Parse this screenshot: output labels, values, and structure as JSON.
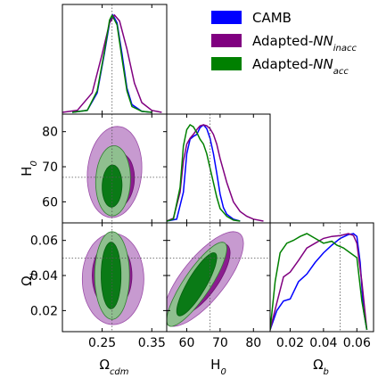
{
  "figure": {
    "type": "triangle-plot",
    "parameters": [
      {
        "key": "omega_cdm",
        "label": "Ω",
        "sub": "cdm",
        "range": [
          0.17,
          0.38
        ],
        "ticks": [
          0.25,
          0.35
        ],
        "tick_labels": [
          "0.25",
          "0.35"
        ],
        "marker": 0.27
      },
      {
        "key": "H0",
        "label": "H",
        "sub": "0",
        "range": [
          54,
          85
        ],
        "ticks": [
          60,
          70,
          80
        ],
        "tick_labels": [
          "60",
          "70",
          "80"
        ],
        "marker": 67
      },
      {
        "key": "omega_b",
        "label": "Ω",
        "sub": "b",
        "range": [
          0.008,
          0.07
        ],
        "ticks": [
          0.02,
          0.04,
          0.06
        ],
        "tick_labels": [
          "0.02",
          "0.04",
          "0.06"
        ],
        "marker": 0.05
      }
    ]
  },
  "legend": [
    {
      "name": "CAMB",
      "sub": "",
      "color": "#0000ff"
    },
    {
      "name": "Adapted-",
      "italic": "NN",
      "sub": "inacc",
      "color": "#800080"
    },
    {
      "name": "Adapted-",
      "italic": "NN",
      "sub": "acc",
      "color": "#008000"
    }
  ],
  "chart_data": {
    "type": "triangle",
    "series": [
      {
        "name": "CAMB",
        "color": "#0000ff",
        "pdf_omega_cdm": [
          [
            0.19,
            0
          ],
          [
            0.22,
            0.02
          ],
          [
            0.24,
            0.2
          ],
          [
            0.255,
            0.62
          ],
          [
            0.265,
            0.92
          ],
          [
            0.272,
            1.0
          ],
          [
            0.28,
            0.92
          ],
          [
            0.29,
            0.6
          ],
          [
            0.3,
            0.25
          ],
          [
            0.31,
            0.08
          ],
          [
            0.33,
            0.01
          ],
          [
            0.35,
            0
          ]
        ],
        "pdf_H0": [
          [
            54,
            0
          ],
          [
            57,
            0.02
          ],
          [
            59,
            0.3
          ],
          [
            60,
            0.7
          ],
          [
            61,
            0.85
          ],
          [
            62,
            0.88
          ],
          [
            63,
            0.9
          ],
          [
            64,
            0.97
          ],
          [
            65,
            1.0
          ],
          [
            66,
            0.96
          ],
          [
            67,
            0.86
          ],
          [
            68,
            0.7
          ],
          [
            69,
            0.5
          ],
          [
            70,
            0.28
          ],
          [
            71,
            0.14
          ],
          [
            72,
            0.07
          ],
          [
            74,
            0.02
          ],
          [
            76,
            0
          ]
        ],
        "pdf_omega_b": [
          [
            0.008,
            0
          ],
          [
            0.012,
            0.2
          ],
          [
            0.016,
            0.3
          ],
          [
            0.02,
            0.32
          ],
          [
            0.025,
            0.5
          ],
          [
            0.03,
            0.58
          ],
          [
            0.035,
            0.7
          ],
          [
            0.04,
            0.8
          ],
          [
            0.045,
            0.88
          ],
          [
            0.05,
            0.95
          ],
          [
            0.055,
            0.99
          ],
          [
            0.058,
            1.0
          ],
          [
            0.06,
            0.97
          ],
          [
            0.062,
            0.7
          ],
          [
            0.064,
            0.2
          ],
          [
            0.066,
            0
          ]
        ]
      },
      {
        "name": "Adapted-NN_inacc",
        "color": "#800080",
        "pdf_omega_cdm": [
          [
            0.17,
            0
          ],
          [
            0.2,
            0.02
          ],
          [
            0.23,
            0.2
          ],
          [
            0.25,
            0.6
          ],
          [
            0.265,
            0.92
          ],
          [
            0.275,
            1.0
          ],
          [
            0.285,
            0.94
          ],
          [
            0.3,
            0.65
          ],
          [
            0.315,
            0.3
          ],
          [
            0.33,
            0.1
          ],
          [
            0.35,
            0.02
          ],
          [
            0.37,
            0
          ]
        ],
        "pdf_H0": [
          [
            54,
            0
          ],
          [
            56,
            0.03
          ],
          [
            58,
            0.3
          ],
          [
            59,
            0.62
          ],
          [
            60,
            0.8
          ],
          [
            61,
            0.86
          ],
          [
            62,
            0.9
          ],
          [
            63,
            0.95
          ],
          [
            64,
            0.99
          ],
          [
            65,
            1.0
          ],
          [
            66,
            0.99
          ],
          [
            67,
            0.96
          ],
          [
            68,
            0.9
          ],
          [
            69,
            0.8
          ],
          [
            70,
            0.65
          ],
          [
            72,
            0.4
          ],
          [
            74,
            0.2
          ],
          [
            76,
            0.1
          ],
          [
            78,
            0.05
          ],
          [
            80,
            0.02
          ],
          [
            83,
            0
          ]
        ],
        "pdf_omega_b": [
          [
            0.008,
            0
          ],
          [
            0.012,
            0.28
          ],
          [
            0.016,
            0.55
          ],
          [
            0.02,
            0.6
          ],
          [
            0.025,
            0.72
          ],
          [
            0.03,
            0.85
          ],
          [
            0.035,
            0.9
          ],
          [
            0.04,
            0.95
          ],
          [
            0.045,
            0.97
          ],
          [
            0.05,
            0.98
          ],
          [
            0.055,
            1.0
          ],
          [
            0.058,
            0.98
          ],
          [
            0.06,
            0.9
          ],
          [
            0.063,
            0.5
          ],
          [
            0.066,
            0
          ]
        ]
      },
      {
        "name": "Adapted-NN_acc",
        "color": "#008000",
        "pdf_omega_cdm": [
          [
            0.19,
            0
          ],
          [
            0.22,
            0.02
          ],
          [
            0.24,
            0.22
          ],
          [
            0.255,
            0.64
          ],
          [
            0.265,
            0.95
          ],
          [
            0.27,
            1.0
          ],
          [
            0.28,
            0.9
          ],
          [
            0.29,
            0.55
          ],
          [
            0.3,
            0.22
          ],
          [
            0.31,
            0.06
          ],
          [
            0.33,
            0.01
          ],
          [
            0.35,
            0
          ]
        ],
        "pdf_H0": [
          [
            54,
            0
          ],
          [
            56,
            0.02
          ],
          [
            58,
            0.35
          ],
          [
            59,
            0.78
          ],
          [
            60,
            0.95
          ],
          [
            61,
            1.0
          ],
          [
            62,
            0.98
          ],
          [
            63,
            0.92
          ],
          [
            64,
            0.85
          ],
          [
            65,
            0.8
          ],
          [
            66,
            0.7
          ],
          [
            67,
            0.55
          ],
          [
            68,
            0.4
          ],
          [
            69,
            0.25
          ],
          [
            70,
            0.13
          ],
          [
            72,
            0.05
          ],
          [
            74,
            0.01
          ],
          [
            76,
            0
          ]
        ],
        "pdf_omega_b": [
          [
            0.008,
            0
          ],
          [
            0.011,
            0.5
          ],
          [
            0.014,
            0.8
          ],
          [
            0.018,
            0.9
          ],
          [
            0.022,
            0.93
          ],
          [
            0.026,
            0.97
          ],
          [
            0.03,
            1.0
          ],
          [
            0.035,
            0.95
          ],
          [
            0.04,
            0.9
          ],
          [
            0.045,
            0.92
          ],
          [
            0.048,
            0.88
          ],
          [
            0.052,
            0.85
          ],
          [
            0.056,
            0.8
          ],
          [
            0.06,
            0.75
          ],
          [
            0.063,
            0.3
          ],
          [
            0.066,
            0
          ]
        ]
      }
    ],
    "contours_2d": {
      "H0_vs_omega_cdm": [
        {
          "series": "Adapted-NN_inacc",
          "level": "95",
          "center": [
            0.275,
            68.5
          ],
          "half_widths": [
            0.055,
            13
          ],
          "corr": 0.1
        },
        {
          "series": "Adapted-NN_inacc",
          "level": "68",
          "center": [
            0.28,
            66
          ],
          "half_widths": [
            0.035,
            8
          ],
          "corr": 0.1
        },
        {
          "series": "Adapted-NN_acc",
          "level": "95",
          "center": [
            0.272,
            66
          ],
          "half_widths": [
            0.035,
            10
          ],
          "corr": 0.05
        },
        {
          "series": "Adapted-NN_acc",
          "level": "68",
          "center": [
            0.27,
            64.5
          ],
          "half_widths": [
            0.02,
            6
          ],
          "corr": 0.05
        }
      ],
      "omega_b_vs_omega_cdm": [
        {
          "series": "Adapted-NN_inacc",
          "level": "95",
          "center": [
            0.272,
            0.038
          ],
          "half_widths": [
            0.062,
            0.026
          ],
          "corr": 0.0
        },
        {
          "series": "Adapted-NN_inacc",
          "level": "68",
          "center": [
            0.27,
            0.04
          ],
          "half_widths": [
            0.04,
            0.019
          ],
          "corr": 0.0
        },
        {
          "series": "Adapted-NN_acc",
          "level": "95",
          "center": [
            0.27,
            0.04
          ],
          "half_widths": [
            0.035,
            0.025
          ],
          "corr": 0.0
        },
        {
          "series": "Adapted-NN_acc",
          "level": "68",
          "center": [
            0.268,
            0.04
          ],
          "half_widths": [
            0.02,
            0.019
          ],
          "corr": 0.0
        }
      ],
      "omega_b_vs_H0": [
        {
          "series": "Adapted-NN_inacc",
          "level": "95",
          "center": [
            65,
            0.038
          ],
          "half_widths": [
            12,
            0.027
          ],
          "corr": 0.75
        },
        {
          "series": "Adapted-NN_inacc",
          "level": "68",
          "center": [
            65,
            0.038
          ],
          "half_widths": [
            8,
            0.02
          ],
          "corr": 0.75
        },
        {
          "series": "Adapted-NN_acc",
          "level": "95",
          "center": [
            63,
            0.035
          ],
          "half_widths": [
            9,
            0.024
          ],
          "corr": 0.85
        },
        {
          "series": "Adapted-NN_acc",
          "level": "68",
          "center": [
            63,
            0.035
          ],
          "half_widths": [
            6,
            0.018
          ],
          "corr": 0.85
        }
      ]
    },
    "markers": {
      "omega_cdm": 0.27,
      "H0": 67,
      "omega_b": 0.05
    },
    "grid": false,
    "legend_placement": "top-right"
  }
}
